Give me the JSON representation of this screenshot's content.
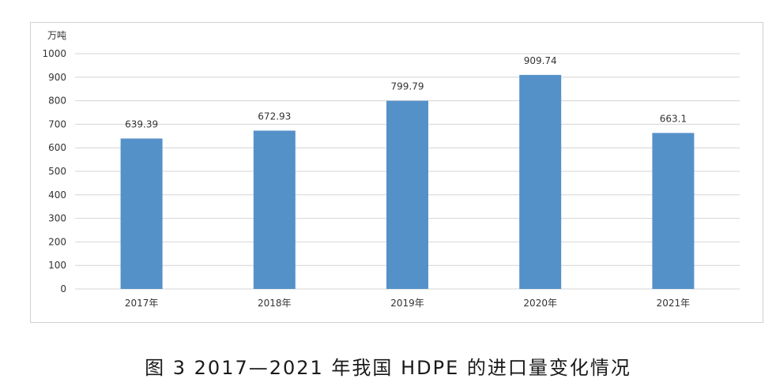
{
  "chart_data": {
    "type": "bar",
    "unit_label": "万吨",
    "categories": [
      "2017年",
      "2018年",
      "2019年",
      "2020年",
      "2021年"
    ],
    "values": [
      639.39,
      672.93,
      799.79,
      909.74,
      663.1
    ],
    "value_labels": [
      "639.39",
      "672.93",
      "799.79",
      "909.74",
      "663.1"
    ],
    "yticks": [
      "0",
      "100",
      "200",
      "300",
      "400",
      "500",
      "600",
      "700",
      "800",
      "900",
      "1000"
    ],
    "ylim": [
      0,
      1000
    ],
    "grid": true,
    "bar_color": "#5591c9",
    "grid_color": "#d4d4d4",
    "frame_color": "#d0d0d0"
  },
  "caption": "图 3  2017—2021 年我国 HDPE 的进口量变化情况"
}
